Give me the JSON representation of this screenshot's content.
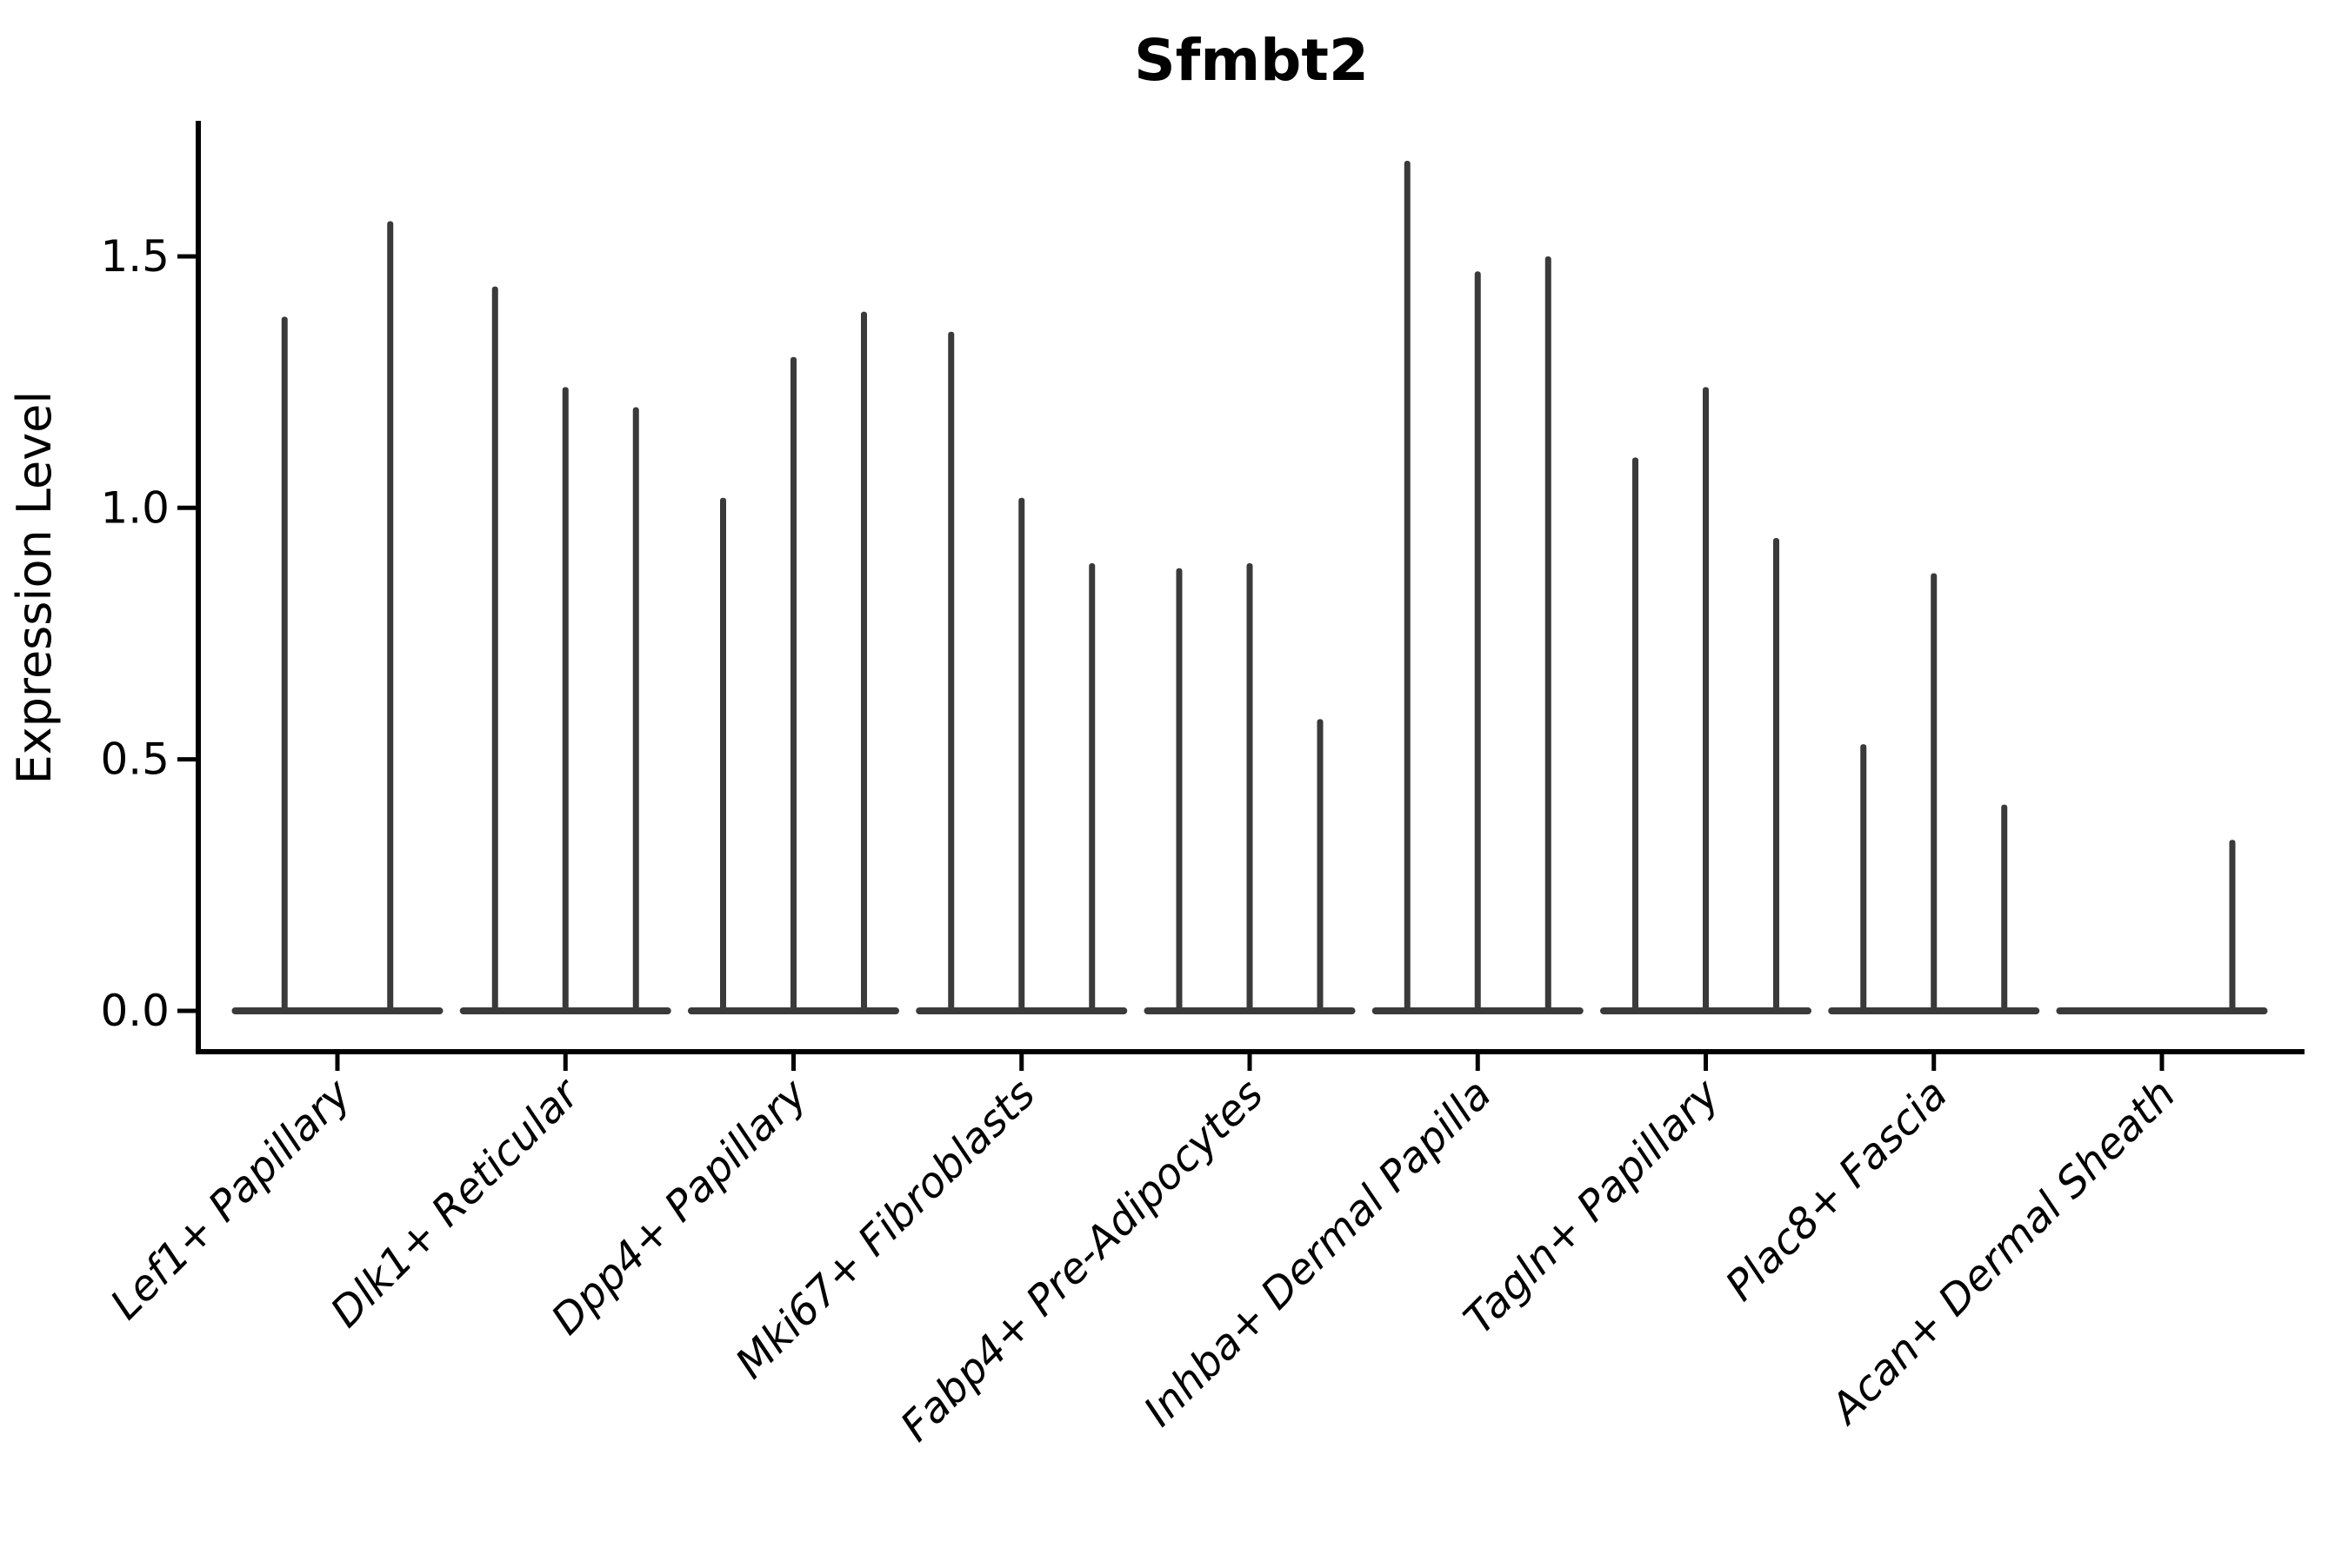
{
  "figure": {
    "background": "#ffffff",
    "violin_color": "#3a3a3a",
    "axis_color": "#000000"
  },
  "chart_data": {
    "type": "violin",
    "title": "Sfmbt2",
    "xlabel": "",
    "ylabel": "Expression Level",
    "yticks": [
      0.0,
      0.5,
      1.0,
      1.5
    ],
    "ytick_labels": [
      "0.0",
      "0.5",
      "1.0",
      "1.5"
    ],
    "ylim": [
      -0.08,
      1.77
    ],
    "grid": false,
    "legend_position": "none",
    "x_tick_label_rotation_deg": 45,
    "violin_style": "density concentrated at 0 (flat base) with a thin spike up to the max value",
    "baseline_value": 0,
    "categories": [
      "Lef1+ Papillary",
      "Dlk1+ Reticular",
      "Dpp4+ Papillary",
      "Mki67+ Fibroblasts",
      "Fabp4+ Pre-Adipocytes",
      "Inhba+ Dermal Papilla",
      "Tagln+ Papillary",
      "Plac8+ Fascia",
      "Acan+ Dermal Sheath"
    ],
    "groups": [
      {
        "label": "Lef1+ Papillary",
        "spike_max_values": [
          1.38,
          1.57
        ]
      },
      {
        "label": "Dlk1+ Reticular",
        "spike_max_values": [
          1.44,
          1.24,
          1.2
        ]
      },
      {
        "label": "Dpp4+ Papillary",
        "spike_max_values": [
          1.02,
          1.3,
          1.39
        ]
      },
      {
        "label": "Mki67+ Fibroblasts",
        "spike_max_values": [
          1.35,
          1.02,
          0.89
        ]
      },
      {
        "label": "Fabp4+ Pre-Adipocytes",
        "spike_max_values": [
          0.88,
          0.89,
          0.58
        ]
      },
      {
        "label": "Inhba+ Dermal Papilla",
        "spike_max_values": [
          1.69,
          1.47,
          1.5
        ]
      },
      {
        "label": "Tagln+ Papillary",
        "spike_max_values": [
          1.1,
          1.24,
          0.94
        ]
      },
      {
        "label": "Plac8+ Fascia",
        "spike_max_values": [
          0.53,
          0.87,
          0.41
        ]
      },
      {
        "label": "Acan+ Dermal Sheath",
        "spike_max_values": [
          0.0,
          0.0,
          0.34
        ]
      }
    ]
  }
}
